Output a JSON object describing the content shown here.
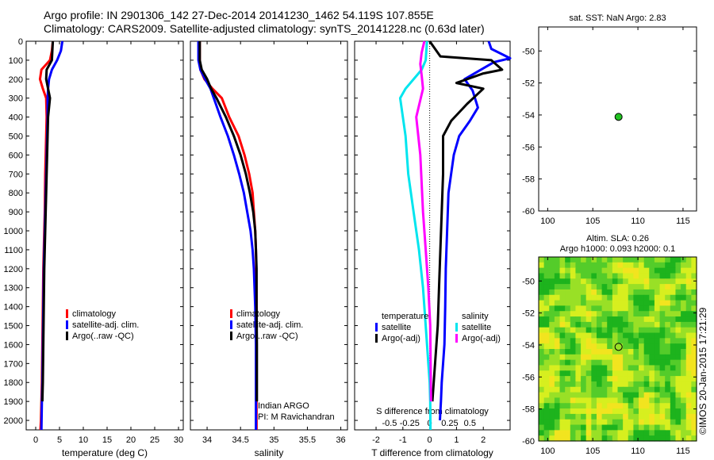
{
  "header": {
    "line1": "Argo profile: IN 2901306_142 27-Dec-2014 20141230_1462 54.119S 107.855E",
    "line2": "Climatology: CARS2009. Satellite-adjusted climatology: synTS_20141228.nc (0.63d later)"
  },
  "colors": {
    "climatology": "#ff0000",
    "satellite": "#0000ff",
    "argo": "#000000",
    "sat_salinity": "#00e5ee",
    "argo_salinity": "#ff00ff"
  },
  "depth_axis": {
    "ylim": [
      0,
      2050
    ],
    "ticks": [
      0,
      100,
      200,
      300,
      400,
      500,
      600,
      700,
      800,
      900,
      1000,
      1100,
      1200,
      1300,
      1400,
      1500,
      1600,
      1700,
      1800,
      1900,
      2000
    ]
  },
  "chart_data": [
    {
      "id": "temperature",
      "type": "line",
      "xlabel": "temperature (deg C)",
      "xlim": [
        -2,
        31
      ],
      "xticks": [
        0,
        5,
        10,
        15,
        20,
        25,
        30
      ],
      "xtick_labels": [
        "0",
        "5",
        "10",
        "15",
        "20",
        "25",
        "30"
      ],
      "legend": [
        "climatology",
        "satellite-adj. clim.",
        "Argo(..raw -QC)"
      ],
      "series": [
        {
          "name": "climatology",
          "color": "#ff0000",
          "x": [
            3.6,
            3.4,
            3.0,
            1.2,
            0.9,
            1.5,
            2.2,
            2.3,
            2.2,
            2.1,
            2.0,
            1.95,
            1.9,
            1.8,
            1.7,
            1.6,
            1.5,
            1.4,
            1.3,
            1.2,
            1.1,
            1.0
          ],
          "depth": [
            0,
            50,
            100,
            150,
            200,
            250,
            300,
            400,
            500,
            600,
            700,
            800,
            900,
            1000,
            1100,
            1200,
            1400,
            1600,
            1800,
            1900,
            2000,
            2050
          ]
        },
        {
          "name": "satellite-adj. clim.",
          "color": "#0000ff",
          "x": [
            5.6,
            5.3,
            4.5,
            3.4,
            2.8,
            2.6,
            2.5,
            2.5,
            2.4,
            2.3,
            2.2,
            2.1,
            2.0,
            1.9,
            1.8,
            1.7,
            1.6,
            1.5,
            1.4,
            1.3,
            1.2
          ],
          "depth": [
            0,
            50,
            100,
            150,
            200,
            250,
            300,
            400,
            500,
            600,
            700,
            800,
            900,
            1000,
            1100,
            1200,
            1400,
            1600,
            1800,
            1900,
            2050
          ]
        },
        {
          "name": "Argo(..raw -QC)",
          "color": "#000000",
          "x": [
            3.6,
            3.5,
            3.4,
            2.3,
            2.2,
            2.6,
            3.0,
            2.6,
            2.5,
            2.4,
            2.3,
            2.2,
            2.1,
            2.0,
            1.9,
            1.8,
            1.7,
            1.6,
            1.5,
            1.4
          ],
          "depth": [
            0,
            50,
            100,
            150,
            200,
            250,
            300,
            400,
            500,
            600,
            700,
            800,
            900,
            1000,
            1100,
            1200,
            1400,
            1600,
            1800,
            1900
          ]
        }
      ]
    },
    {
      "id": "salinity",
      "type": "line",
      "xlabel": "salinity",
      "xlim": [
        33.75,
        36.1
      ],
      "xticks": [
        34,
        34.5,
        35,
        35.5,
        36
      ],
      "xtick_labels": [
        "34",
        "34.5",
        "35",
        "35.5",
        "36"
      ],
      "legend": [
        "climatology",
        "satellite-adj. clim.",
        "Argo(..raw -QC)"
      ],
      "annotation": [
        "Indian ARGO",
        "PI: M Ravichandran"
      ],
      "series": [
        {
          "name": "climatology",
          "color": "#ff0000",
          "x": [
            33.89,
            33.89,
            33.9,
            33.96,
            34.08,
            34.22,
            34.33,
            34.47,
            34.56,
            34.63,
            34.68,
            34.7,
            34.72,
            34.73,
            34.735,
            34.74,
            34.74,
            34.74,
            34.74,
            34.74
          ],
          "depth": [
            0,
            100,
            150,
            200,
            250,
            300,
            400,
            500,
            600,
            700,
            800,
            900,
            1000,
            1100,
            1200,
            1400,
            1600,
            1800,
            2000,
            2050
          ]
        },
        {
          "name": "satellite-adj. clim.",
          "color": "#0000ff",
          "x": [
            33.87,
            33.87,
            33.9,
            33.97,
            34.05,
            34.1,
            34.2,
            34.31,
            34.4,
            34.48,
            34.55,
            34.6,
            34.65,
            34.68,
            34.7,
            34.72,
            34.73,
            34.73,
            34.73,
            34.73
          ],
          "depth": [
            0,
            100,
            150,
            200,
            250,
            300,
            400,
            500,
            600,
            700,
            800,
            900,
            1000,
            1100,
            1200,
            1400,
            1600,
            1800,
            2000,
            2050
          ]
        },
        {
          "name": "Argo(..raw -QC)",
          "color": "#000000",
          "x": [
            33.89,
            33.89,
            33.92,
            34.0,
            34.06,
            34.14,
            34.28,
            34.4,
            34.5,
            34.58,
            34.64,
            34.69,
            34.72,
            34.73,
            34.74,
            34.74,
            34.745,
            34.745,
            34.745
          ],
          "depth": [
            0,
            100,
            150,
            200,
            250,
            300,
            400,
            500,
            600,
            700,
            800,
            900,
            1000,
            1100,
            1200,
            1400,
            1600,
            1800,
            1900
          ]
        }
      ]
    },
    {
      "id": "difference",
      "type": "line",
      "xlabel": "T difference from climatology",
      "xlabel_top": "S difference from climatology",
      "xlim": [
        -2.8,
        3.0
      ],
      "xticks": [
        -2,
        -1,
        0,
        1,
        2
      ],
      "xtick_labels": [
        "-2",
        "-1",
        "0",
        "1",
        "2"
      ],
      "top_ticks": [
        -1.5,
        -0.75,
        0,
        0.75,
        1.5
      ],
      "top_tick_labels": [
        "-0.5",
        "-0.25",
        "0",
        "0.25",
        "0.5"
      ],
      "legend_temperature": [
        "temperature",
        "satellite",
        "Argo(-adj)"
      ],
      "legend_salinity": [
        "salinity",
        "satellite",
        "Argo(-adj)"
      ],
      "series": [
        {
          "name": "T satellite",
          "color": "#0000ff",
          "x": [
            2.2,
            2.3,
            3.0,
            2.4,
            1.3,
            1.6,
            1.8,
            1.5,
            1.1,
            0.9,
            0.7,
            0.65,
            0.6,
            0.58,
            0.55,
            0.5,
            0.45,
            0.42,
            0.38
          ],
          "depth": [
            0,
            40,
            90,
            110,
            200,
            260,
            350,
            420,
            500,
            600,
            800,
            1000,
            1200,
            1400,
            1600,
            1700,
            1800,
            1900,
            2000
          ]
        },
        {
          "name": "T Argo(-adj)",
          "color": "#000000",
          "x": [
            0,
            0.4,
            2.3,
            2.7,
            2.0,
            1.0,
            2.0,
            1.4,
            0.8,
            0.5,
            0.5,
            0.45,
            0.4,
            0.35,
            0.3,
            0.25,
            0.2,
            0.15,
            0.1
          ],
          "depth": [
            0,
            80,
            100,
            150,
            170,
            220,
            250,
            330,
            420,
            500,
            700,
            900,
            1100,
            1300,
            1500,
            1600,
            1700,
            1800,
            1900
          ]
        },
        {
          "name": "S satellite",
          "color": "#00e5ee",
          "x": [
            -0.1,
            -0.15,
            -0.3,
            -0.9,
            -1.1,
            -1.0,
            -0.9,
            -0.8,
            -0.6,
            -0.4,
            -0.25,
            -0.15,
            -0.05,
            0.0,
            0.02,
            0.03
          ],
          "depth": [
            0,
            100,
            150,
            250,
            300,
            400,
            500,
            700,
            900,
            1100,
            1300,
            1500,
            1700,
            1800,
            1900,
            2050
          ]
        },
        {
          "name": "S Argo(-adj)",
          "color": "#ff00ff",
          "x": [
            -0.2,
            -0.3,
            -0.35,
            -0.3,
            -0.25,
            -0.5,
            -0.35,
            -0.25,
            -0.15,
            -0.05,
            0.02,
            0.05
          ],
          "depth": [
            0,
            60,
            120,
            180,
            250,
            400,
            600,
            900,
            1100,
            1300,
            1500,
            1900
          ]
        }
      ]
    },
    {
      "id": "sst-map",
      "type": "scatter",
      "title": "sat. SST: NaN Argo: 2.83",
      "xlim": [
        99,
        116.5
      ],
      "ylim": [
        -60,
        -48.5
      ],
      "xticks": [
        100,
        105,
        110,
        115
      ],
      "yticks": [
        -60,
        -58,
        -56,
        -54,
        -52,
        -50
      ],
      "tick_labels_x": [
        "100",
        "105",
        "110",
        "115"
      ],
      "tick_labels_y": [
        "-60",
        "-58",
        "-56",
        "-54",
        "-52",
        "-50"
      ],
      "marker": {
        "lon": 107.855,
        "lat": -54.119,
        "color": "#22c222"
      }
    },
    {
      "id": "sla-map",
      "type": "heatmap",
      "title": "Altim. SLA: 0.26",
      "subtitle": "Argo h1000: 0.093 h2000: 0.1",
      "xlim": [
        99,
        116.5
      ],
      "ylim": [
        -60,
        -48.5
      ],
      "xticks": [
        100,
        105,
        110,
        115
      ],
      "yticks": [
        -60,
        -58,
        -56,
        -54,
        -52,
        -50
      ],
      "tick_labels_x": [
        "100",
        "105",
        "110",
        "115"
      ],
      "tick_labels_y": [
        "-60",
        "-58",
        "-56",
        "-54",
        "-52",
        "-50"
      ],
      "colors": [
        "#1db31d",
        "#54cc2a",
        "#99e026",
        "#d7ef1f",
        "#f2e41f"
      ],
      "marker": {
        "lon": 107.855,
        "lat": -54.119
      }
    }
  ],
  "watermark": "©IMOS 20-Jan-2015 17:21:29"
}
